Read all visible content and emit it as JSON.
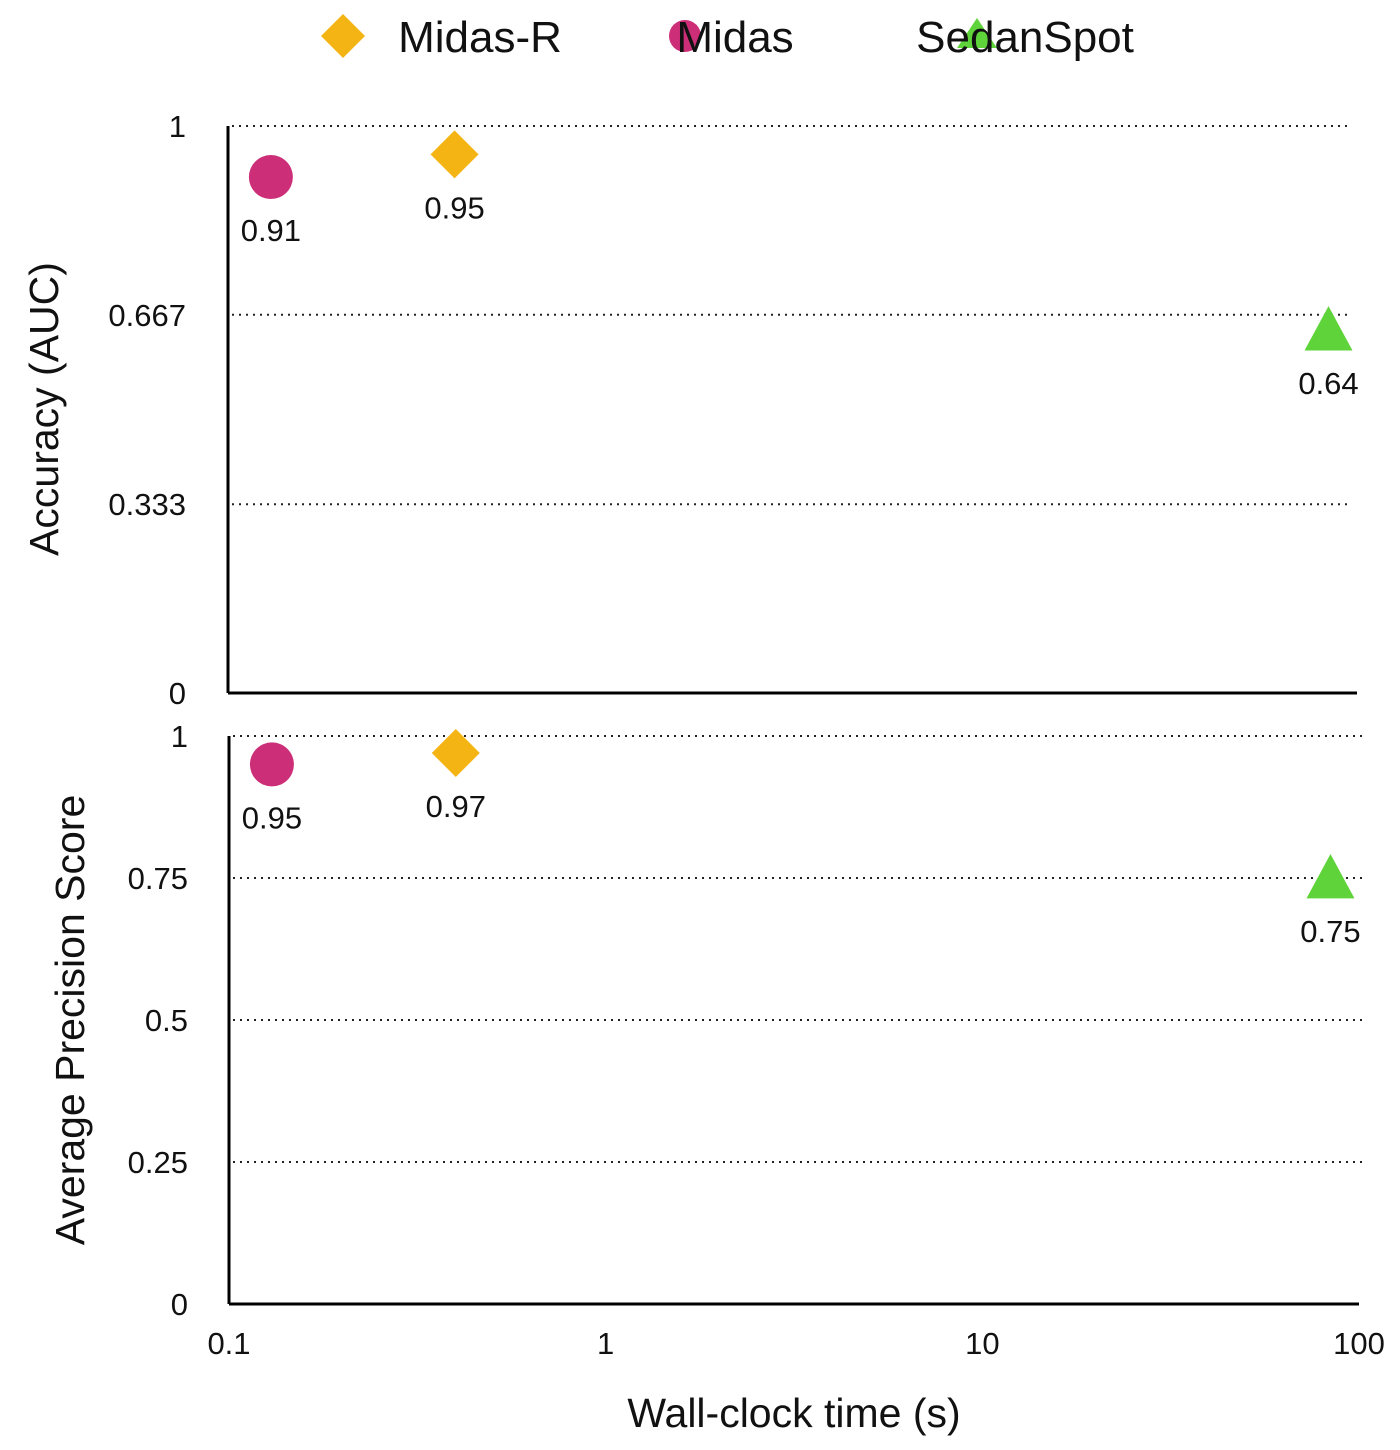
{
  "legend": [
    {
      "name": "Midas-R",
      "marker": "diamond",
      "color": "#F4B514"
    },
    {
      "name": "Midas",
      "marker": "circle",
      "color": "#CC2E78"
    },
    {
      "name": "SedanSpot",
      "marker": "triangle",
      "color": "#5FD43A"
    }
  ],
  "chart_data": [
    {
      "type": "scatter",
      "ylabel": "Accuracy (AUC)",
      "xlabel": "",
      "xscale": "log",
      "xlim": [
        0.1,
        100
      ],
      "ylim": [
        0,
        1
      ],
      "yticks": [
        0,
        0.333,
        0.667,
        1
      ],
      "ytick_labels": [
        "0",
        "0.333",
        "0.667",
        "1"
      ],
      "grid": "horizontal dotted",
      "series": [
        {
          "name": "Midas",
          "points": [
            {
              "x": 0.13,
              "y": 0.91,
              "label": "0.91"
            }
          ]
        },
        {
          "name": "Midas-R",
          "points": [
            {
              "x": 0.4,
              "y": 0.95,
              "label": "0.95"
            }
          ]
        },
        {
          "name": "SedanSpot",
          "points": [
            {
              "x": 84,
              "y": 0.64,
              "label": "0.64"
            }
          ]
        }
      ]
    },
    {
      "type": "scatter",
      "ylabel": "Average Precision Score",
      "xlabel": "Wall-clock time (s)",
      "xscale": "log",
      "xlim": [
        0.1,
        100
      ],
      "ylim": [
        0,
        1
      ],
      "xticks": [
        0.1,
        1,
        10,
        100
      ],
      "xtick_labels": [
        "0.1",
        "1",
        "10",
        "100"
      ],
      "yticks": [
        0,
        0.25,
        0.5,
        0.75,
        1
      ],
      "ytick_labels": [
        "0",
        "0.25",
        "0.5",
        "0.75",
        "1"
      ],
      "grid": "horizontal dotted",
      "series": [
        {
          "name": "Midas",
          "points": [
            {
              "x": 0.13,
              "y": 0.95,
              "label": "0.95"
            }
          ]
        },
        {
          "name": "Midas-R",
          "points": [
            {
              "x": 0.4,
              "y": 0.97,
              "label": "0.97"
            }
          ]
        },
        {
          "name": "SedanSpot",
          "points": [
            {
              "x": 84,
              "y": 0.75,
              "label": "0.75"
            }
          ]
        }
      ]
    }
  ]
}
